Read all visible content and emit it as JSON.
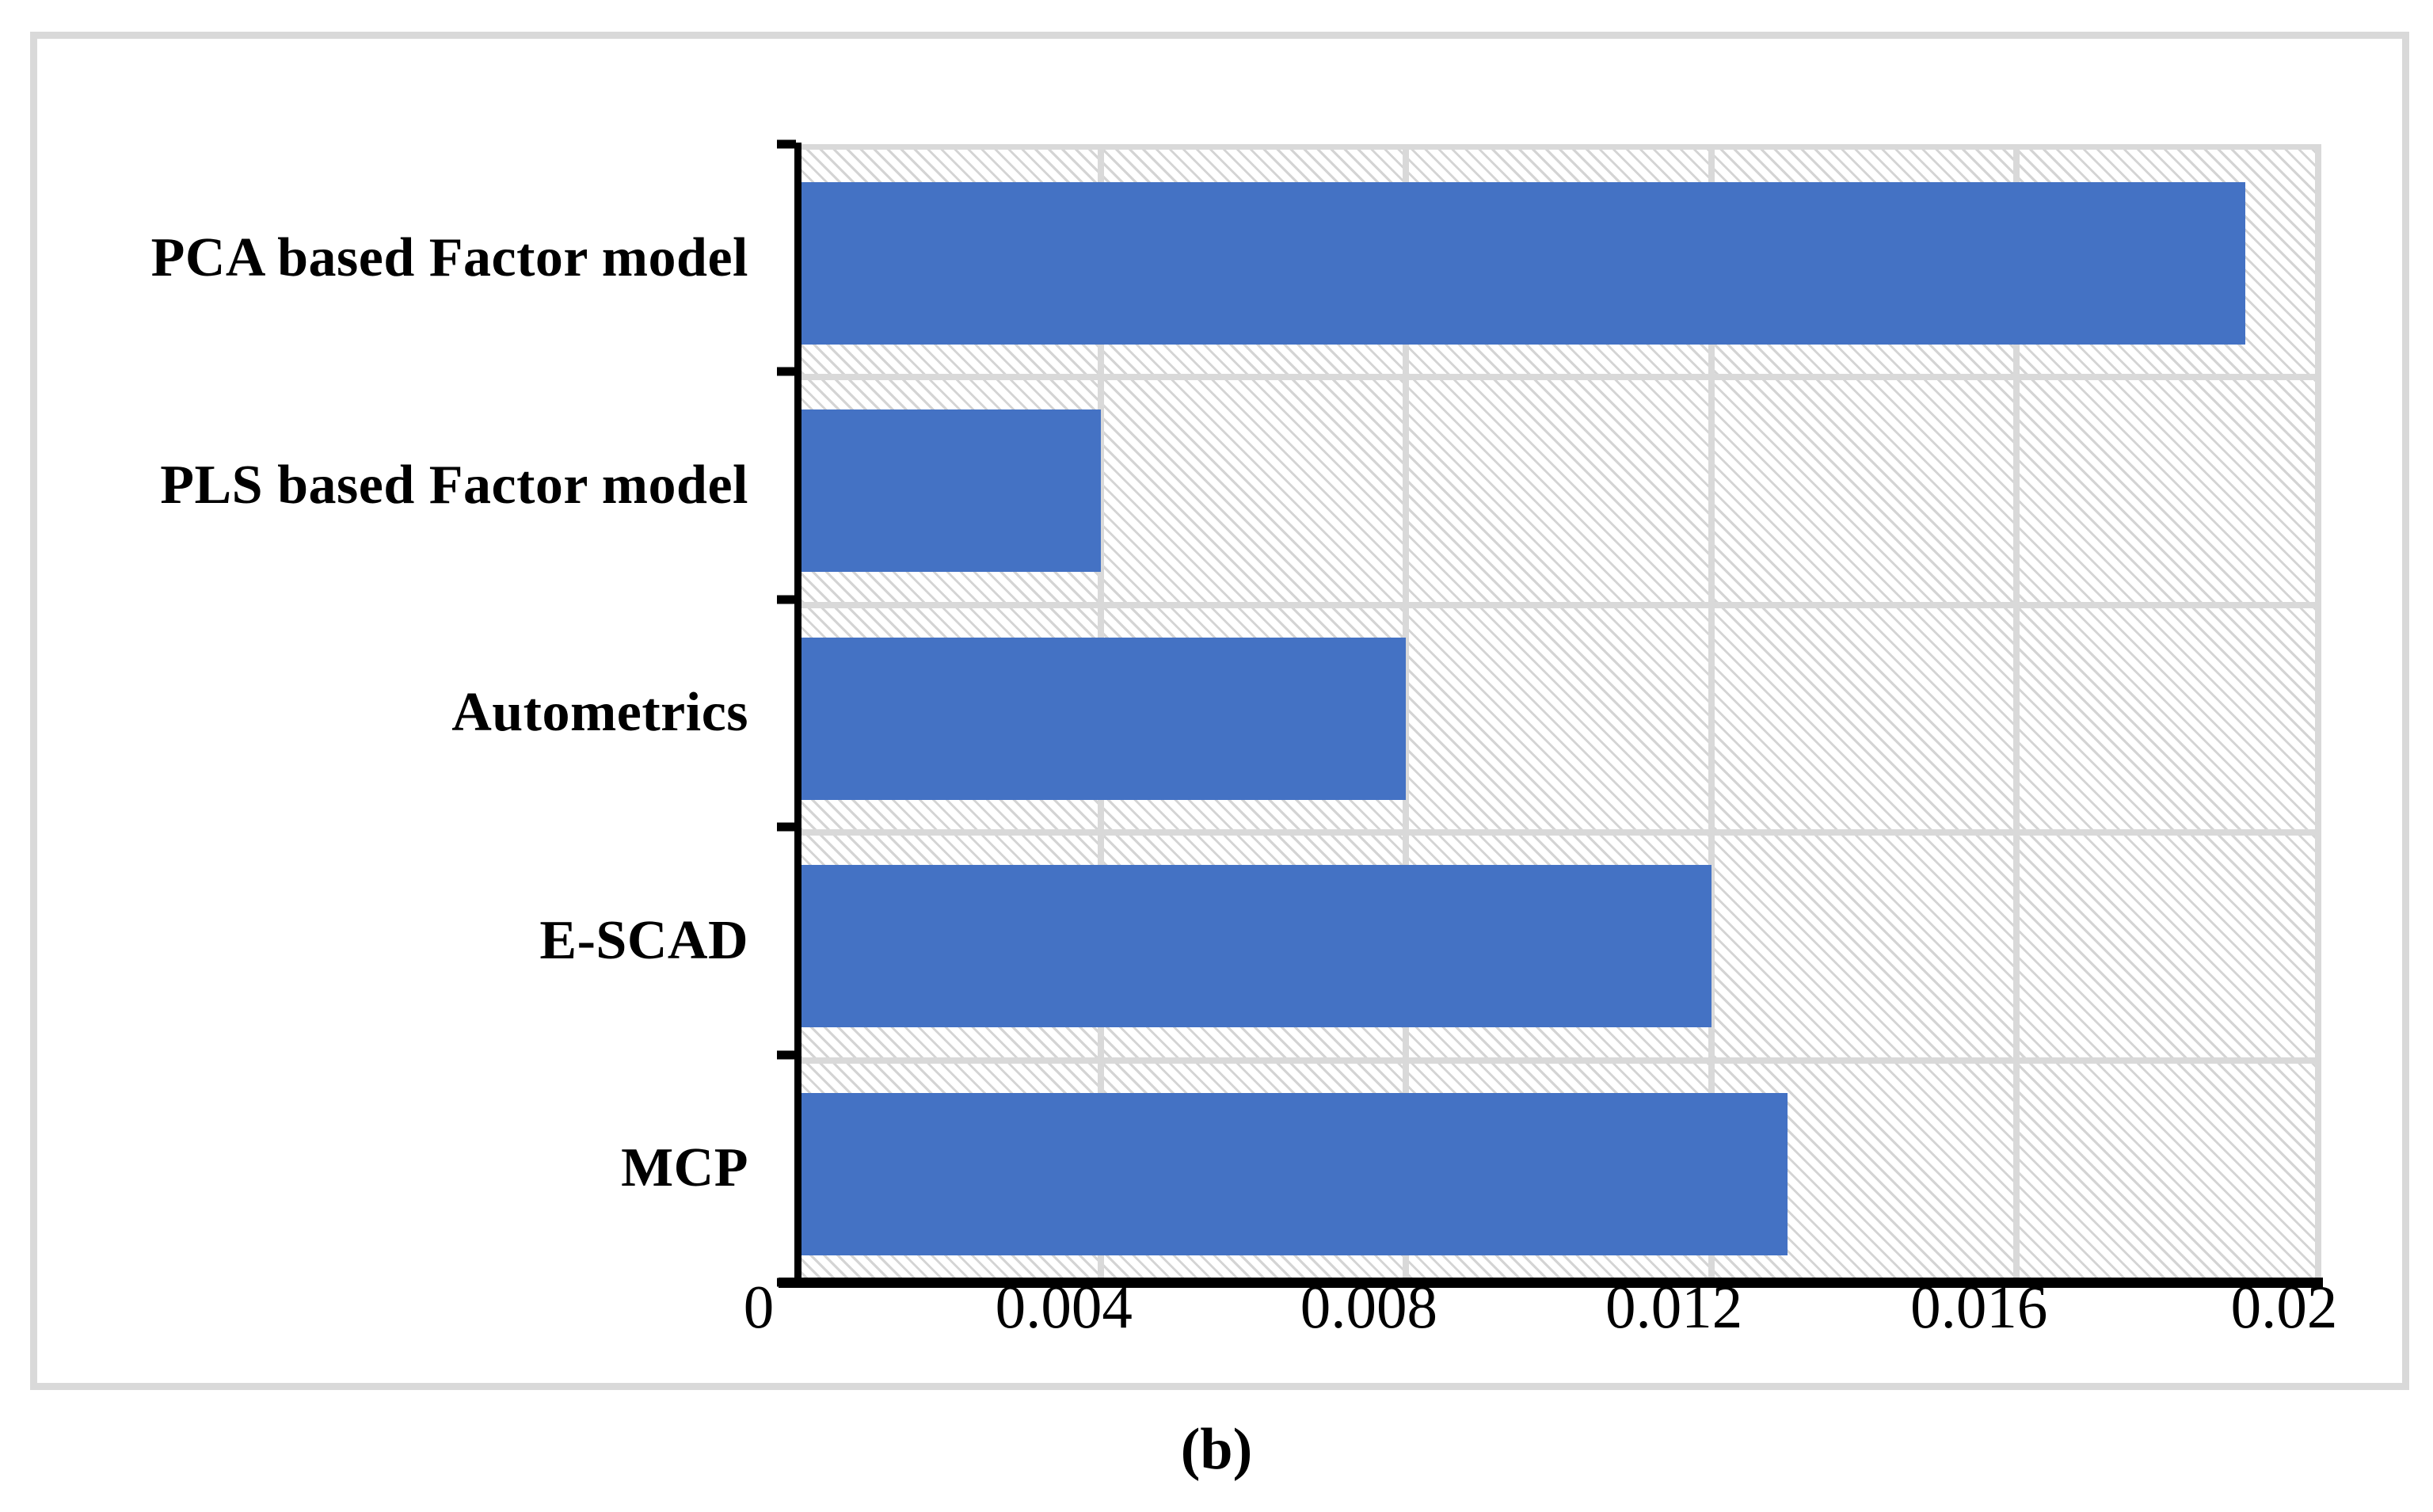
{
  "figure": {
    "caption": "(b)"
  },
  "chart_data": {
    "type": "bar",
    "orientation": "horizontal",
    "title": "",
    "xlabel": "",
    "ylabel": "",
    "categories": [
      "PCA based Factor model",
      "PLS based Factor model",
      "Autometrics",
      "E-SCAD",
      "MCP"
    ],
    "values": [
      0.019,
      0.004,
      0.008,
      0.012,
      0.013
    ],
    "xlim": [
      0,
      0.02
    ],
    "x_ticks": [
      0,
      0.004,
      0.008,
      0.012,
      0.016,
      0.02
    ],
    "x_tick_labels": [
      "0",
      "0.004",
      "0.008",
      "0.012",
      "0.016",
      "0.02"
    ],
    "grid": true,
    "legend_position": "none",
    "bar_color": "#4472C4",
    "gridline_color": "#D9D9D9",
    "axis_color": "#000000",
    "figure_border_color": "#D9D9D9",
    "plot_background": "light-downward-diagonal-hatch"
  }
}
